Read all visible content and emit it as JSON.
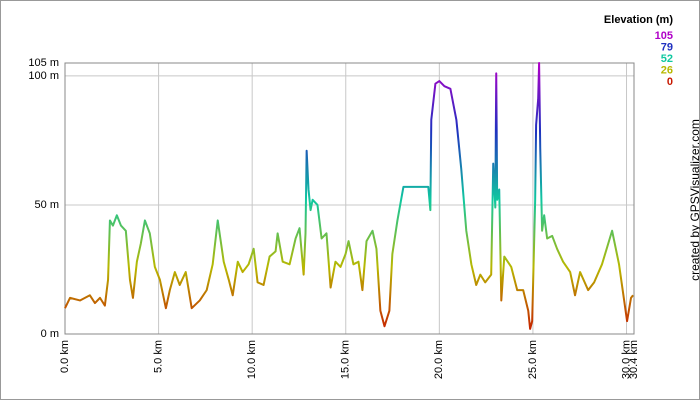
{
  "chart_data": {
    "type": "line",
    "legend_title": "Elevation (m)",
    "credit": "created by GPSVisualizer.com",
    "color_scale": [
      {
        "value": 105,
        "color": "#b000c8"
      },
      {
        "value": 79,
        "color": "#2030c0"
      },
      {
        "value": 52,
        "color": "#10c8a0"
      },
      {
        "value": 26,
        "color": "#b8b800"
      },
      {
        "value": 0,
        "color": "#c81800"
      }
    ],
    "x": [
      0,
      0.27,
      0.8,
      1.33,
      1.6,
      1.87,
      2.13,
      2.3,
      2.4,
      2.56,
      2.77,
      2.99,
      3.25,
      3.47,
      3.63,
      3.84,
      4.05,
      4.27,
      4.53,
      4.8,
      5.07,
      5.39,
      5.6,
      5.87,
      6.13,
      6.45,
      6.77,
      7.2,
      7.57,
      7.89,
      8.16,
      8.48,
      8.75,
      8.96,
      9.23,
      9.49,
      9.81,
      10.08,
      10.29,
      10.61,
      10.93,
      11.25,
      11.36,
      11.63,
      12.0,
      12.32,
      12.53,
      12.75,
      12.85,
      12.91,
      13.01,
      13.12,
      13.23,
      13.49,
      13.71,
      13.97,
      14.19,
      14.45,
      14.72,
      14.99,
      15.15,
      15.41,
      15.68,
      15.89,
      16.11,
      16.43,
      16.64,
      16.85,
      17.07,
      17.33,
      17.49,
      17.76,
      18.08,
      18.93,
      19.41,
      19.52,
      19.57,
      19.79,
      20.0,
      20.27,
      20.59,
      20.91,
      21.17,
      21.44,
      21.71,
      21.97,
      22.19,
      22.45,
      22.77,
      22.88,
      22.99,
      23.04,
      23.09,
      23.2,
      23.31,
      23.47,
      23.84,
      24.16,
      24.48,
      24.75,
      24.85,
      24.96,
      25.12,
      25.17,
      25.28,
      25.33,
      25.39,
      25.49,
      25.6,
      25.76,
      26.03,
      26.29,
      26.61,
      26.99,
      27.25,
      27.52,
      27.95,
      28.27,
      28.69,
      29.23,
      29.6,
      30.03,
      30.24,
      30.35
    ],
    "values": [
      10,
      14,
      13,
      15,
      12,
      14,
      11,
      21,
      44,
      42,
      46,
      42,
      40,
      21,
      14,
      28,
      35,
      44,
      39,
      26,
      21,
      10,
      17,
      24,
      19,
      24,
      10,
      13,
      17,
      27,
      44,
      28,
      21,
      15,
      28,
      24,
      27,
      33,
      20,
      19,
      30,
      32,
      39,
      28,
      27,
      37,
      41,
      23,
      39,
      71,
      56,
      48,
      52,
      50,
      37,
      39,
      18,
      28,
      26,
      31,
      36,
      27,
      28,
      17,
      36,
      40,
      33,
      9,
      3,
      9,
      31,
      44,
      57,
      57,
      57,
      48,
      83,
      97,
      98,
      96,
      95,
      83,
      64,
      40,
      27,
      19,
      23,
      20,
      23,
      66,
      49,
      101,
      52,
      56,
      13,
      30,
      26,
      17,
      17,
      9,
      2,
      5,
      52,
      81,
      91,
      105,
      72,
      40,
      46,
      37,
      38,
      33,
      28,
      24,
      15,
      24,
      17,
      20,
      27,
      40,
      27,
      5,
      14,
      15
    ],
    "xlim": [
      0,
      30.4
    ],
    "ylim": [
      0,
      105
    ],
    "xticks": [
      {
        "value": 0,
        "label": "0.0 km"
      },
      {
        "value": 5,
        "label": "5.0 km"
      },
      {
        "value": 10,
        "label": "10.0 km"
      },
      {
        "value": 15,
        "label": "15.0 km"
      },
      {
        "value": 20,
        "label": "20.0 km"
      },
      {
        "value": 25,
        "label": "25.0 km"
      },
      {
        "value": 30,
        "label": "30.0 km"
      },
      {
        "value": 30.4,
        "label": "30.4 km"
      }
    ],
    "yticks": [
      {
        "value": 0,
        "label": "0 m"
      },
      {
        "value": 50,
        "label": "50 m"
      },
      {
        "value": 100,
        "label": "100 m"
      },
      {
        "value": 105,
        "label": "105 m"
      }
    ],
    "grid": true
  }
}
